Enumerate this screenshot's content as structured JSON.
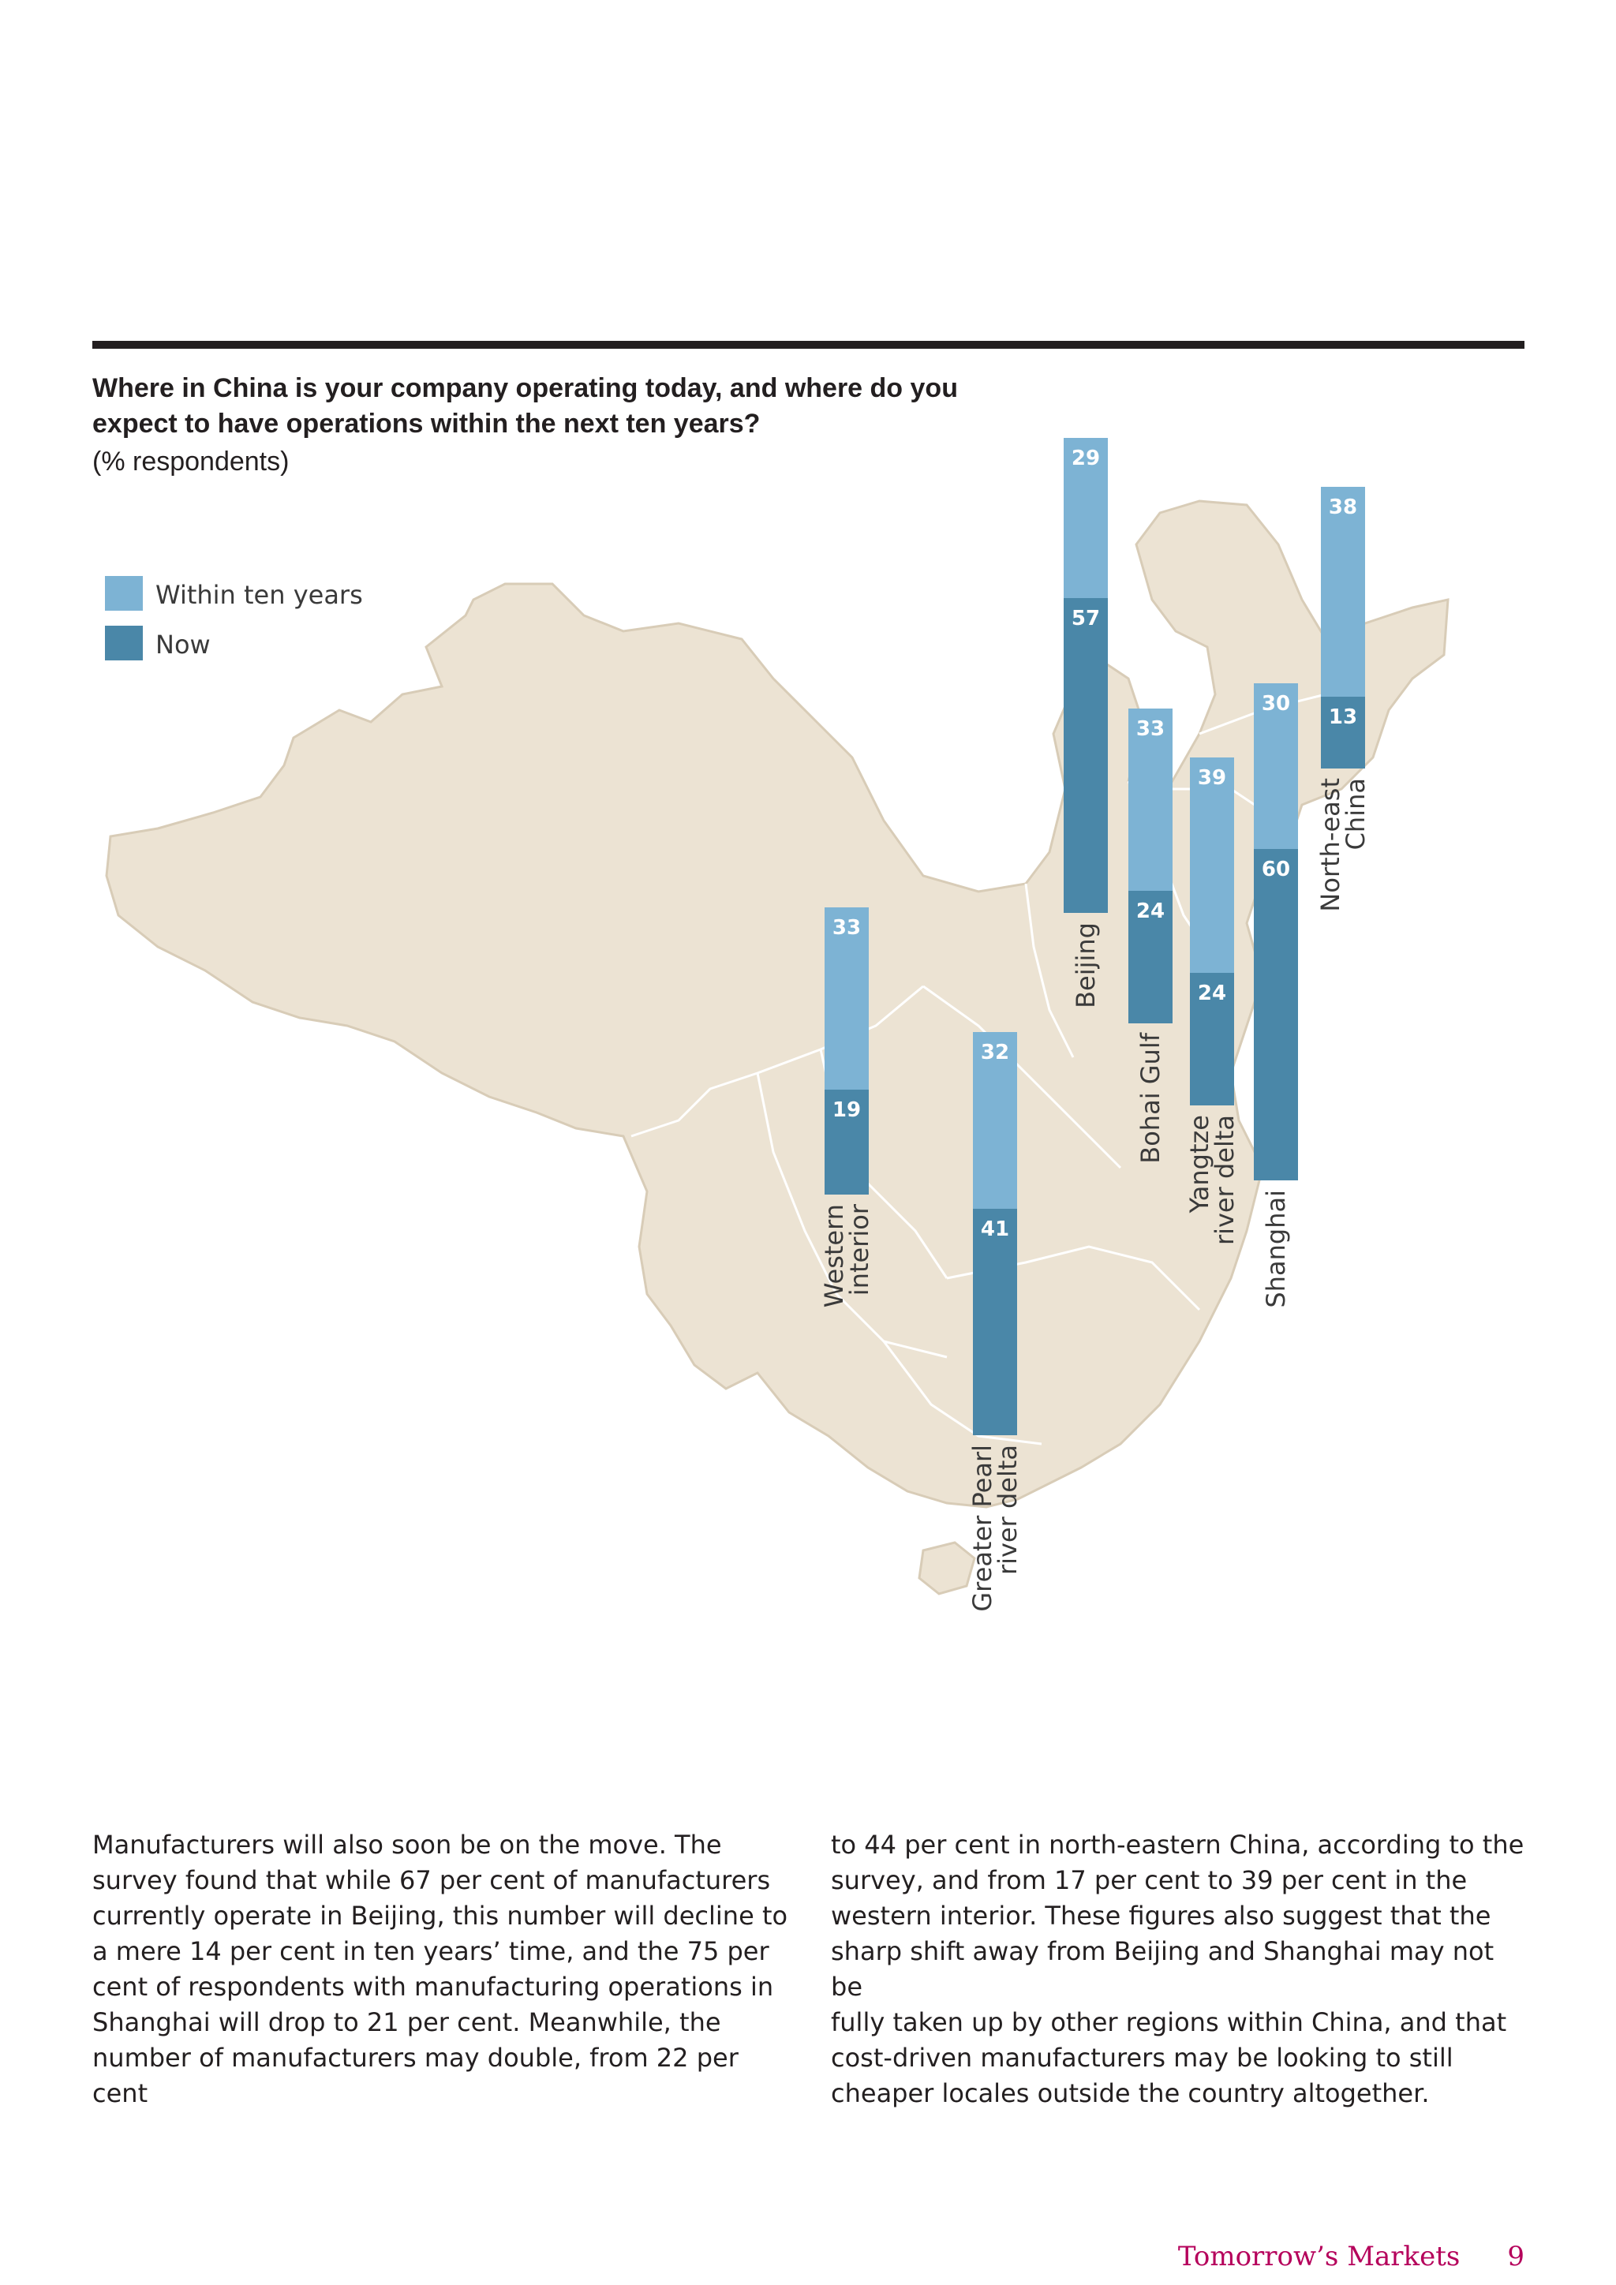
{
  "chart_data": {
    "type": "bar",
    "stacked": true,
    "title": "Where in China is your company operating today, and where do you expect to have operations within the next ten years?",
    "subtitle": "(% respondents)",
    "legend": [
      "Within ten years",
      "Now"
    ],
    "legend_position": "top-left",
    "colors": {
      "within_ten_years": "#7db3d4",
      "now": "#4a87a8",
      "map_fill": "#ece3d3",
      "map_border": "#ffffff"
    },
    "categories": [
      "Western interior",
      "Greater Pearl river delta",
      "Beijing",
      "Bohai Gulf",
      "Yangtze river delta",
      "Shanghai",
      "North-east China"
    ],
    "series": [
      {
        "name": "Within ten years",
        "values": [
          33,
          32,
          29,
          33,
          39,
          30,
          38
        ]
      },
      {
        "name": "Now",
        "values": [
          19,
          41,
          57,
          24,
          24,
          60,
          13
        ]
      }
    ]
  },
  "body": {
    "left": [
      "Manufacturers will also soon be on the move. The",
      "survey found that while 67 per cent of manufacturers",
      "currently operate in Beijing, this number will decline to",
      "a mere 14 per cent in ten years’ time, and the 75 per",
      "cent of respondents with manufacturing operations in",
      "Shanghai will drop to 21 per cent. Meanwhile, the",
      "number of manufacturers may double, from 22 per cent"
    ],
    "right": [
      "to 44 per cent in north-eastern China, according to the",
      "survey, and from 17 per cent to 39 per cent in the",
      "western interior. These figures also suggest that the",
      "sharp shift away from Beijing and Shanghai may not be",
      "fully taken up by other regions within China, and that",
      "cost-driven manufacturers may be looking to still",
      "cheaper locales outside the country altogether."
    ]
  },
  "footer": {
    "publication": "Tomorrow’s Markets",
    "page_number": "9"
  }
}
